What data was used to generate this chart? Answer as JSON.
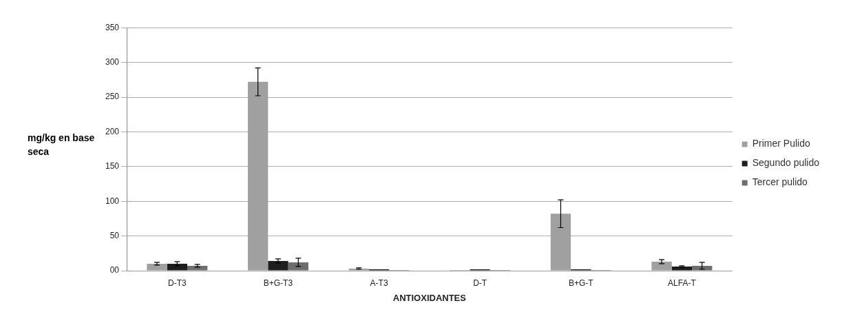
{
  "chart_data": {
    "type": "bar",
    "xlabel": "ANTIOXIDANTES",
    "ylabel": "mg/kg en base seca",
    "categories": [
      "D-T3",
      "B+G-T3",
      "A-T3",
      "D-T",
      "B+G-T",
      "ALFA-T"
    ],
    "series": [
      {
        "name": "Primer Pulido",
        "color": "#a0a0a0",
        "values": [
          10,
          272,
          3,
          1,
          82,
          13
        ],
        "errors": [
          2,
          20,
          1,
          null,
          20,
          3
        ]
      },
      {
        "name": "Segundo pulido",
        "color": "#1e1e1e",
        "values": [
          10,
          14,
          2,
          2,
          2,
          6
        ],
        "errors": [
          3,
          3,
          null,
          null,
          null,
          1
        ]
      },
      {
        "name": "Tercer pulido",
        "color": "#6e6e6e",
        "values": [
          7,
          12,
          1,
          1,
          1,
          7
        ],
        "errors": [
          2,
          6,
          null,
          null,
          null,
          5
        ]
      }
    ],
    "ylim": [
      0,
      350
    ],
    "yticks": [
      {
        "value": 0,
        "label": "00"
      },
      50,
      100,
      150,
      200,
      250,
      300,
      350
    ],
    "grid": "y",
    "legend": "right"
  }
}
